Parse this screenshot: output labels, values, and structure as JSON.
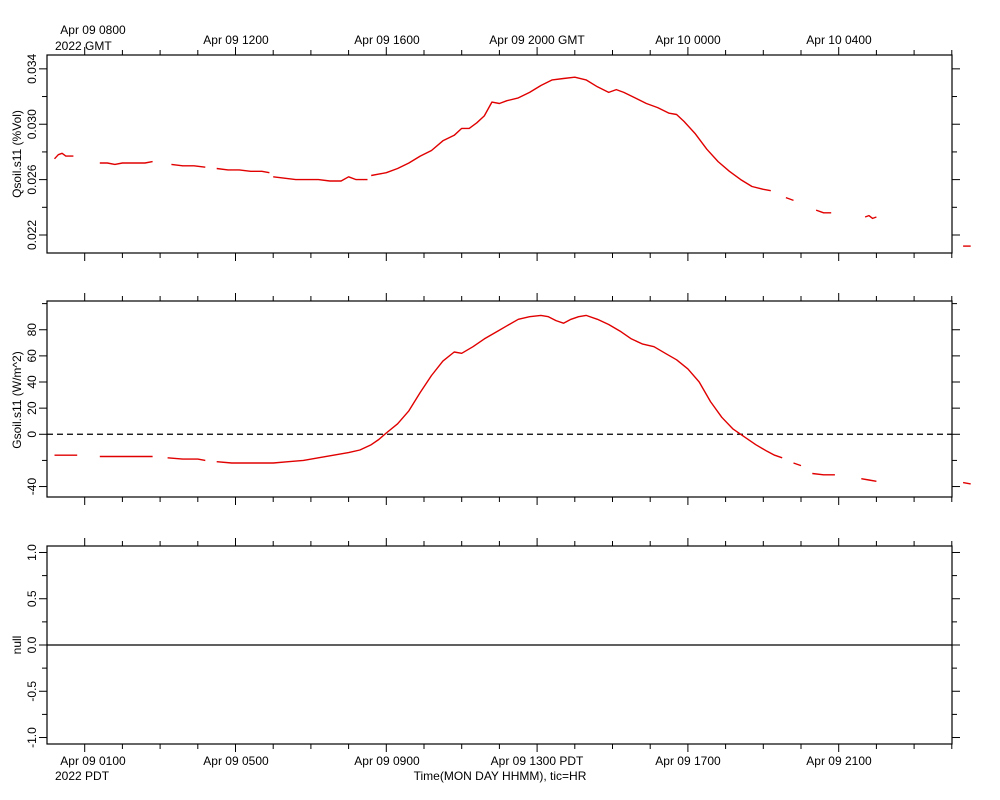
{
  "top_axis": {
    "labels": [
      "Apr 09 0800",
      "Apr 09 1200",
      "Apr 09 1600",
      "Apr 09 2000 GMT",
      "Apr 10 0000",
      "Apr 10 0400"
    ],
    "year_label": "2022 GMT"
  },
  "bottom_axis": {
    "labels": [
      "Apr 09 0100",
      "Apr 09 0500",
      "Apr 09 0900",
      "Apr 09 1300 PDT",
      "Apr 09 1700",
      "Apr 09 2100"
    ],
    "year_label": "2022 PDT",
    "title": "Time(MON DAY HHMM), tic=HR"
  },
  "colors": {
    "series": "#e00000",
    "axes": "#000000",
    "background": "#ffffff"
  },
  "chart_data": [
    {
      "type": "line",
      "ylabel": "Qsoil.s11 (%Vol)",
      "ytick_labels": [
        "0.022",
        "0.026",
        "0.030",
        "0.034"
      ],
      "ylim": [
        0.0207,
        0.035
      ],
      "x_unit": "hours since Apr 09 0000 PDT",
      "xlim": [
        0,
        24.5
      ],
      "series": [
        {
          "segments": [
            [
              [
                0.2,
                0.0275
              ],
              [
                0.3,
                0.0278
              ],
              [
                0.4,
                0.0279
              ],
              [
                0.5,
                0.0277
              ],
              [
                0.7,
                0.0277
              ]
            ],
            [
              [
                1.4,
                0.0272
              ],
              [
                1.6,
                0.0272
              ],
              [
                1.8,
                0.0271
              ],
              [
                2.0,
                0.0272
              ],
              [
                2.3,
                0.0272
              ],
              [
                2.6,
                0.0272
              ],
              [
                2.8,
                0.0273
              ]
            ],
            [
              [
                3.3,
                0.0271
              ],
              [
                3.6,
                0.027
              ],
              [
                3.9,
                0.027
              ],
              [
                4.2,
                0.0269
              ]
            ],
            [
              [
                4.5,
                0.0268
              ],
              [
                4.8,
                0.0267
              ],
              [
                5.1,
                0.0267
              ],
              [
                5.4,
                0.0266
              ],
              [
                5.7,
                0.0266
              ],
              [
                5.9,
                0.0265
              ]
            ],
            [
              [
                6.0,
                0.0262
              ],
              [
                6.3,
                0.0261
              ],
              [
                6.6,
                0.026
              ],
              [
                6.9,
                0.026
              ],
              [
                7.2,
                0.026
              ],
              [
                7.5,
                0.0259
              ],
              [
                7.8,
                0.0259
              ],
              [
                8.0,
                0.0262
              ],
              [
                8.2,
                0.026
              ],
              [
                8.5,
                0.026
              ]
            ],
            [
              [
                8.6,
                0.0263
              ],
              [
                8.8,
                0.0264
              ],
              [
                9.0,
                0.0265
              ],
              [
                9.3,
                0.0268
              ],
              [
                9.6,
                0.0272
              ],
              [
                9.9,
                0.0277
              ],
              [
                10.2,
                0.0281
              ],
              [
                10.5,
                0.0288
              ],
              [
                10.8,
                0.0292
              ],
              [
                11.0,
                0.0297
              ],
              [
                11.2,
                0.0297
              ],
              [
                11.4,
                0.0301
              ],
              [
                11.6,
                0.0306
              ],
              [
                11.8,
                0.0316
              ],
              [
                12.0,
                0.0315
              ],
              [
                12.2,
                0.0317
              ],
              [
                12.5,
                0.0319
              ],
              [
                12.8,
                0.0323
              ],
              [
                13.1,
                0.0328
              ],
              [
                13.4,
                0.0332
              ],
              [
                13.7,
                0.0333
              ],
              [
                14.0,
                0.0334
              ],
              [
                14.3,
                0.0332
              ],
              [
                14.6,
                0.0327
              ],
              [
                14.9,
                0.0323
              ],
              [
                15.1,
                0.0325
              ],
              [
                15.3,
                0.0323
              ],
              [
                15.6,
                0.0319
              ],
              [
                15.9,
                0.0315
              ],
              [
                16.2,
                0.0312
              ],
              [
                16.5,
                0.0308
              ],
              [
                16.7,
                0.0307
              ],
              [
                16.9,
                0.0302
              ],
              [
                17.2,
                0.0293
              ],
              [
                17.5,
                0.0282
              ],
              [
                17.8,
                0.0273
              ],
              [
                18.1,
                0.0266
              ],
              [
                18.4,
                0.026
              ],
              [
                18.7,
                0.0255
              ],
              [
                19.0,
                0.0253
              ],
              [
                19.2,
                0.0252
              ]
            ],
            [
              [
                19.6,
                0.0247
              ],
              [
                19.8,
                0.0245
              ]
            ],
            [
              [
                20.4,
                0.0238
              ],
              [
                20.6,
                0.0236
              ],
              [
                20.8,
                0.0236
              ]
            ],
            [
              [
                21.7,
                0.0233
              ],
              [
                21.8,
                0.0234
              ],
              [
                21.9,
                0.0232
              ],
              [
                22.0,
                0.0233
              ]
            ],
            [
              [
                24.3,
                0.0212
              ],
              [
                24.5,
                0.0212
              ]
            ]
          ]
        }
      ]
    },
    {
      "type": "line",
      "ylabel": "Gsoil.s11 (W/m^2)",
      "ytick_labels": [
        "-40",
        "0",
        "20",
        "40",
        "60",
        "80"
      ],
      "ylim": [
        -48,
        102
      ],
      "x_unit": "hours since Apr 09 0000 PDT",
      "xlim": [
        0,
        24.5
      ],
      "reference_line": {
        "y": 0,
        "style": "dashed"
      },
      "series": [
        {
          "segments": [
            [
              [
                0.2,
                -16
              ],
              [
                0.5,
                -16
              ],
              [
                0.8,
                -16
              ]
            ],
            [
              [
                1.4,
                -17
              ],
              [
                1.8,
                -17
              ],
              [
                2.1,
                -17
              ],
              [
                2.4,
                -17
              ],
              [
                2.8,
                -17
              ]
            ],
            [
              [
                3.2,
                -18
              ],
              [
                3.6,
                -19
              ],
              [
                4.0,
                -19
              ],
              [
                4.2,
                -20
              ]
            ],
            [
              [
                4.5,
                -21
              ],
              [
                4.9,
                -22
              ],
              [
                5.2,
                -22
              ],
              [
                5.6,
                -22
              ],
              [
                6.0,
                -22
              ],
              [
                6.4,
                -21
              ],
              [
                6.8,
                -20
              ],
              [
                7.2,
                -18
              ],
              [
                7.6,
                -16
              ],
              [
                8.0,
                -14
              ],
              [
                8.3,
                -12
              ],
              [
                8.6,
                -8
              ],
              [
                8.8,
                -4
              ],
              [
                9.0,
                1
              ],
              [
                9.3,
                8
              ],
              [
                9.6,
                18
              ],
              [
                9.9,
                32
              ],
              [
                10.2,
                45
              ],
              [
                10.5,
                56
              ],
              [
                10.8,
                63
              ],
              [
                11.0,
                62
              ],
              [
                11.3,
                67
              ],
              [
                11.6,
                73
              ],
              [
                11.9,
                78
              ],
              [
                12.2,
                83
              ],
              [
                12.5,
                88
              ],
              [
                12.8,
                90
              ],
              [
                13.1,
                91
              ],
              [
                13.3,
                90
              ],
              [
                13.5,
                87
              ],
              [
                13.7,
                85
              ],
              [
                13.9,
                88
              ],
              [
                14.1,
                90
              ],
              [
                14.3,
                91
              ],
              [
                14.6,
                88
              ],
              [
                14.9,
                84
              ],
              [
                15.2,
                79
              ],
              [
                15.5,
                73
              ],
              [
                15.8,
                69
              ],
              [
                16.1,
                67
              ],
              [
                16.4,
                62
              ],
              [
                16.7,
                57
              ],
              [
                17.0,
                50
              ],
              [
                17.3,
                40
              ],
              [
                17.6,
                25
              ],
              [
                17.9,
                13
              ],
              [
                18.2,
                4
              ],
              [
                18.5,
                -2
              ],
              [
                18.8,
                -8
              ],
              [
                19.1,
                -13
              ],
              [
                19.3,
                -16
              ],
              [
                19.5,
                -18
              ]
            ],
            [
              [
                19.8,
                -22
              ],
              [
                20.0,
                -24
              ]
            ],
            [
              [
                20.3,
                -30
              ],
              [
                20.6,
                -31
              ],
              [
                20.9,
                -31
              ]
            ],
            [
              [
                21.6,
                -34
              ],
              [
                21.8,
                -35
              ],
              [
                22.0,
                -36
              ]
            ],
            [
              [
                24.3,
                -37
              ],
              [
                24.5,
                -38
              ]
            ]
          ]
        }
      ]
    },
    {
      "type": "line",
      "ylabel": "null",
      "ytick_labels": [
        "-1.0",
        "-0.5",
        "0.0",
        "0.5",
        "1.0"
      ],
      "ylim": [
        -1.07,
        1.07
      ],
      "x_unit": "hours since Apr 09 0000 PDT",
      "xlim": [
        0,
        24.5
      ],
      "reference_line": {
        "y": 0,
        "style": "solid"
      },
      "series": []
    }
  ]
}
